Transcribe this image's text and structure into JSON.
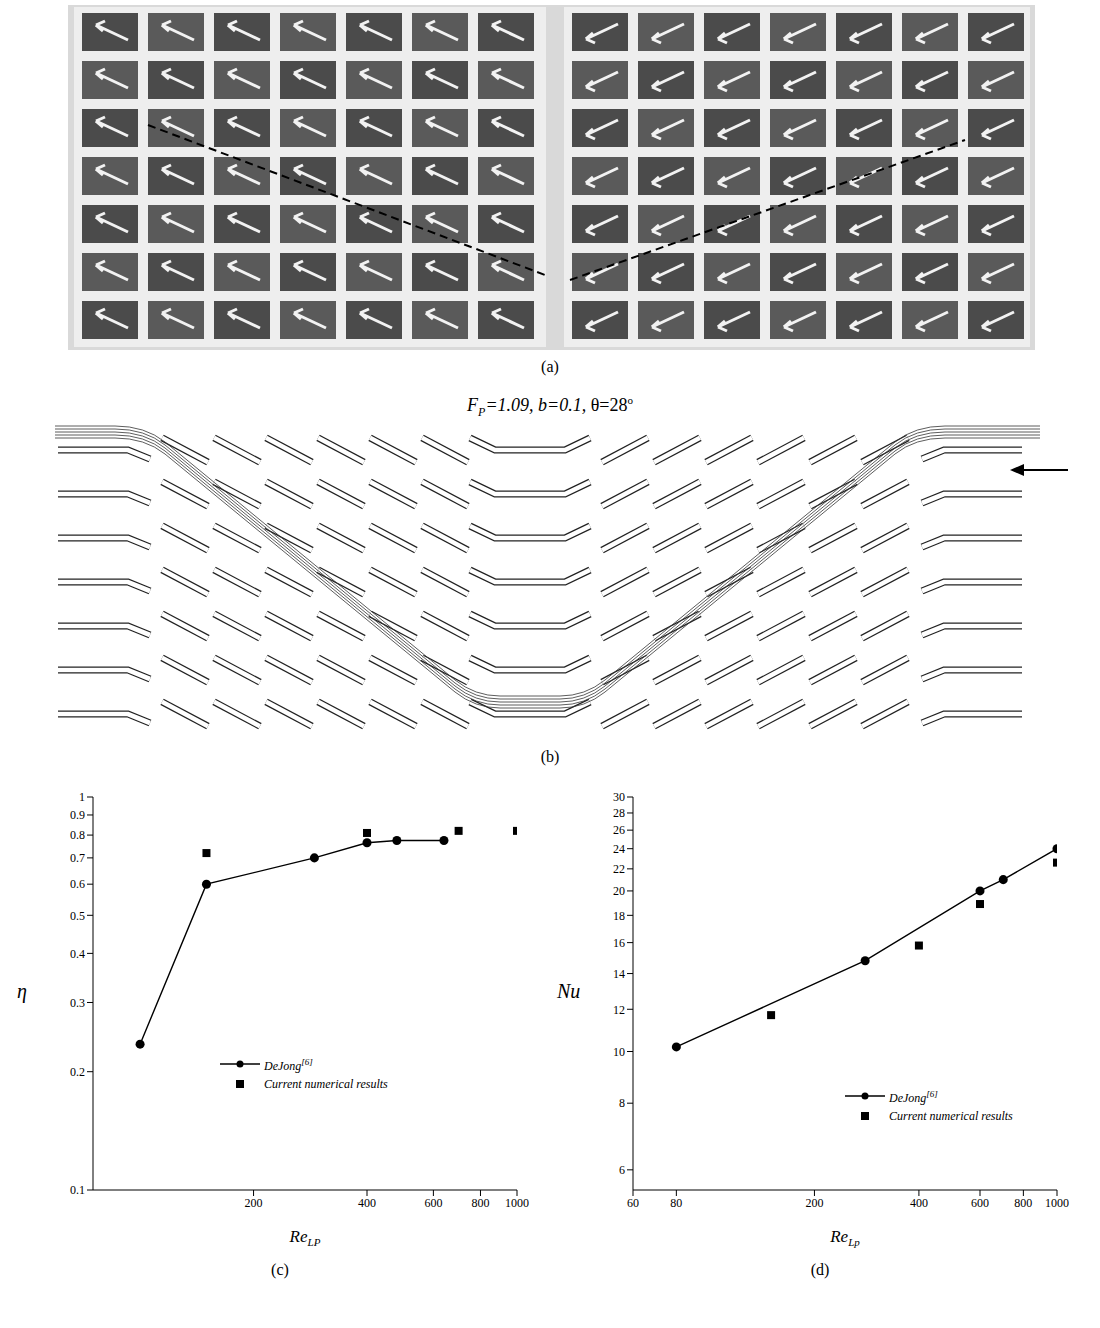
{
  "panels": {
    "a": {
      "panel_label": "(a)"
    },
    "b": {
      "panel_label": "(b)",
      "title": [
        {
          "text": "F",
          "style": "italic"
        },
        {
          "text": "P",
          "style": "sub"
        },
        {
          "text": "=1.09, ",
          "style": "italic"
        },
        {
          "text": "b",
          "style": "italic"
        },
        {
          "text": "=0.1,  ",
          "style": "italic"
        },
        {
          "text": "θ=28",
          "style": "normal"
        },
        {
          "text": "o",
          "style": "sup"
        }
      ]
    }
  },
  "chart_data": [
    {
      "panel_label": "(c)",
      "type": "scatter",
      "x_label": {
        "text": "Re",
        "sub": "LP"
      },
      "y_label": "η",
      "log": true,
      "grid": false,
      "legend": "lower right",
      "xlim": [
        75,
        1000
      ],
      "xticks": [
        200,
        400,
        600,
        800,
        1000
      ],
      "ylim": [
        0.1,
        1
      ],
      "yticks": [
        0.1,
        0.2,
        0.3,
        0.4,
        0.5,
        0.6,
        0.7,
        0.8,
        0.9,
        1
      ],
      "series": [
        {
          "name": "DeJong[6]",
          "color": "#000000",
          "marker": "circle",
          "line_style": "solid",
          "x": [
            100,
            150,
            290,
            400,
            480,
            640
          ],
          "values": [
            0.235,
            0.6,
            0.7,
            0.765,
            0.775,
            0.775
          ]
        },
        {
          "name": "Current numerical results",
          "color": "#000000",
          "marker": "square",
          "line_style": "none",
          "x": [
            150,
            400,
            700,
            1000
          ],
          "values": [
            0.72,
            0.81,
            0.82,
            0.82
          ]
        }
      ]
    },
    {
      "panel_label": "(d)",
      "type": "scatter",
      "x_label": {
        "text": "Re",
        "sub": "Lp"
      },
      "y_label": "Nu",
      "log": true,
      "grid": false,
      "legend": "lower right",
      "xlim": [
        60,
        1000
      ],
      "xticks": [
        60,
        80,
        200,
        400,
        600,
        800,
        1000
      ],
      "ylim": [
        5.5,
        30
      ],
      "yticks": [
        6,
        8,
        10,
        12,
        14,
        16,
        18,
        20,
        22,
        24,
        26,
        28,
        30
      ],
      "series": [
        {
          "name": "DeJong[6]",
          "color": "#000000",
          "marker": "circle",
          "line_style": "solid",
          "x": [
            80,
            280,
            600,
            700,
            1000
          ],
          "values": [
            10.2,
            14.8,
            20,
            21,
            24
          ]
        },
        {
          "name": "Current numerical results",
          "color": "#000000",
          "marker": "square",
          "line_style": "none",
          "x": [
            150,
            400,
            600,
            1000
          ],
          "values": [
            11.7,
            15.8,
            18.9,
            22.6
          ]
        }
      ]
    }
  ]
}
